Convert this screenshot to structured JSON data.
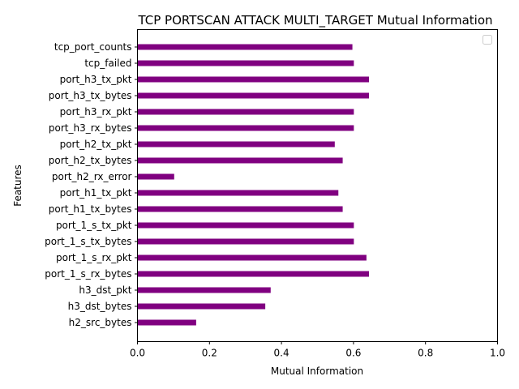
{
  "chart_data": {
    "type": "bar",
    "orientation": "horizontal",
    "title": "TCP PORTSCAN ATTACK MULTI_TARGET Mutual Information",
    "xlabel": "Mutual Information",
    "ylabel": "Features",
    "xlim": [
      0.0,
      1.0
    ],
    "xticks": [
      0.0,
      0.2,
      0.4,
      0.6,
      0.8,
      1.0
    ],
    "xtick_labels": [
      "0.0",
      "0.2",
      "0.4",
      "0.6",
      "0.8",
      "1.0"
    ],
    "bar_color": "#800080",
    "grid": false,
    "legend": {
      "position": "top-right",
      "entries": []
    },
    "categories": [
      "tcp_port_counts",
      "tcp_failed",
      "port_h3_tx_pkt",
      "port_h3_tx_bytes",
      "port_h3_rx_pkt",
      "port_h3_rx_bytes",
      "port_h2_tx_pkt",
      "port_h2_tx_bytes",
      "port_h2_rx_error",
      "port_h1_tx_pkt",
      "port_h1_tx_bytes",
      "port_1_s_tx_pkt",
      "port_1_s_tx_bytes",
      "port_1_s_rx_pkt",
      "port_1_s_rx_bytes",
      "h3_dst_pkt",
      "h3_dst_bytes",
      "h2_src_bytes"
    ],
    "values": [
      0.597,
      0.601,
      0.643,
      0.643,
      0.601,
      0.601,
      0.548,
      0.57,
      0.102,
      0.558,
      0.57,
      0.601,
      0.601,
      0.636,
      0.643,
      0.37,
      0.355,
      0.163
    ]
  }
}
